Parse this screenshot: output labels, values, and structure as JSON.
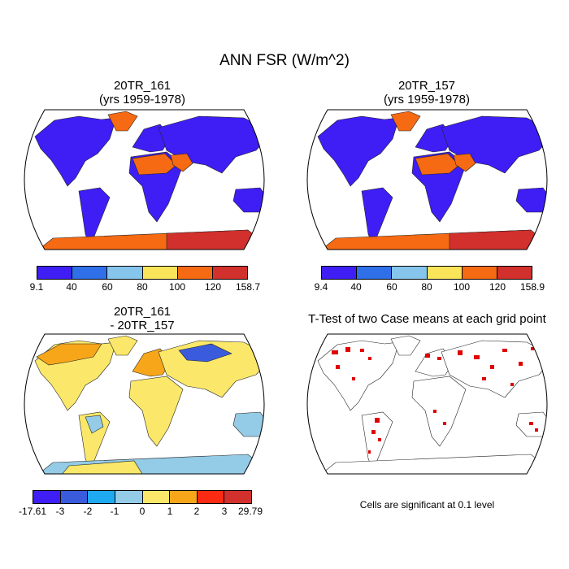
{
  "title": "ANN FSR (W/m^2)",
  "panels": [
    {
      "title_line1": "20TR_161",
      "title_line2": "(yrs 1959-1978)",
      "colorbar": {
        "labels": [
          "9.1",
          "40",
          "60",
          "80",
          "100",
          "120",
          "158.7"
        ],
        "colors": [
          "#3e1ef5",
          "#2f6fe8",
          "#86c5ec",
          "#fae55a",
          "#f56a12",
          "#d2302c"
        ]
      }
    },
    {
      "title_line1": "20TR_157",
      "title_line2": "(yrs 1959-1978)",
      "colorbar": {
        "labels": [
          "9.4",
          "40",
          "60",
          "80",
          "100",
          "120",
          "158.9"
        ],
        "colors": [
          "#3e1ef5",
          "#2f6fe8",
          "#86c5ec",
          "#fae55a",
          "#f56a12",
          "#d2302c"
        ]
      }
    },
    {
      "title_line1": "20TR_161",
      "title_line2": "- 20TR_157",
      "colorbar": {
        "labels": [
          "-17.61",
          "-3",
          "-2",
          "-1",
          "0",
          "1",
          "2",
          "3",
          "29.79"
        ],
        "colors": [
          "#3e1ef5",
          "#3a5bdc",
          "#1ea9f0",
          "#94cbe6",
          "#fbe86a",
          "#f7a61a",
          "#fb2a12",
          "#d2302c"
        ]
      }
    },
    {
      "title_line1": "T-Test of two Case means at each grid point",
      "note": "Cells are significant at 0.1 level"
    }
  ]
}
